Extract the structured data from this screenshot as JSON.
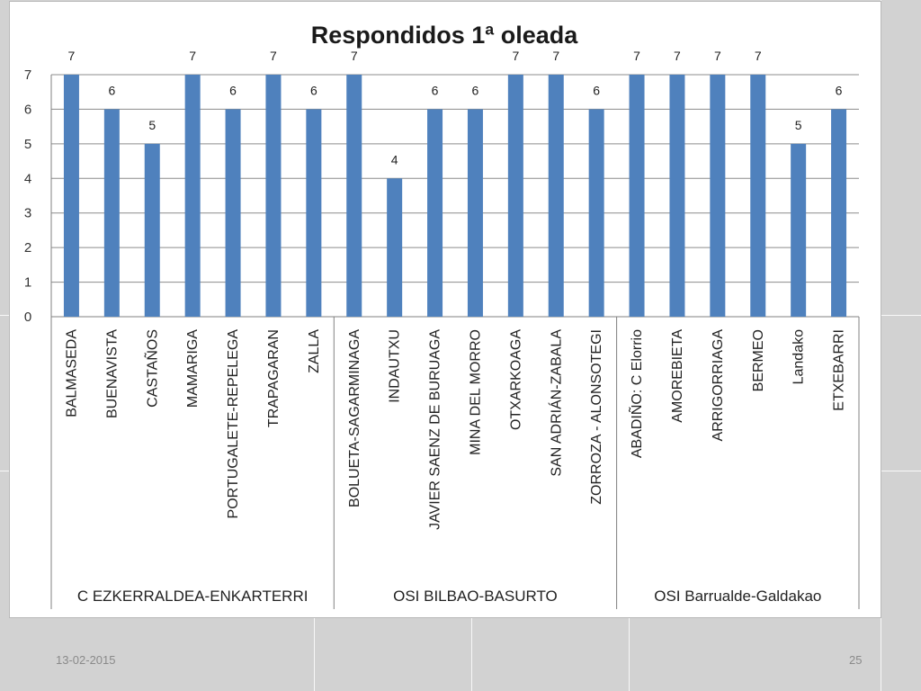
{
  "slide": {
    "date": "13-02-2015",
    "page_number": "25"
  },
  "chart_data": {
    "type": "bar",
    "title": "Respondidos 1ª oleada",
    "xlabel": "",
    "ylabel": "",
    "ylim": [
      0,
      7
    ],
    "yticks": [
      0,
      1,
      2,
      3,
      4,
      5,
      6,
      7
    ],
    "grid": true,
    "legend": "none",
    "bar_color": "#4f81bd",
    "categories": [
      "BALMASEDA",
      "BUENAVISTA",
      "CASTAÑOS",
      "MAMARIGA",
      "PORTUGALETE-REPELEGA",
      "TRAPAGARAN",
      "ZALLA",
      "BOLUETA-SAGARMINAGA",
      "INDAUTXU",
      "JAVIER SAENZ DE BURUAGA",
      "MINA DEL MORRO",
      "OTXARKOAGA",
      "SAN ADRIÁN-ZABALA",
      "ZORROZA - ALONSOTEGI",
      "ABADIÑO: C Elorrio",
      "AMOREBIETA",
      "ARRIGORRIAGA",
      "BERMEO",
      "Landako",
      "ETXEBARRI"
    ],
    "values": [
      7,
      6,
      5,
      7,
      6,
      7,
      6,
      7,
      4,
      6,
      6,
      7,
      7,
      6,
      7,
      7,
      7,
      7,
      5,
      6
    ],
    "groups": [
      {
        "label": "C EZKERRALDEA-ENKARTERRI",
        "count": 7
      },
      {
        "label": "OSI BILBAO-BASURTO",
        "count": 7
      },
      {
        "label": "OSI Barrualde-Galdakao",
        "count": 6
      }
    ]
  }
}
